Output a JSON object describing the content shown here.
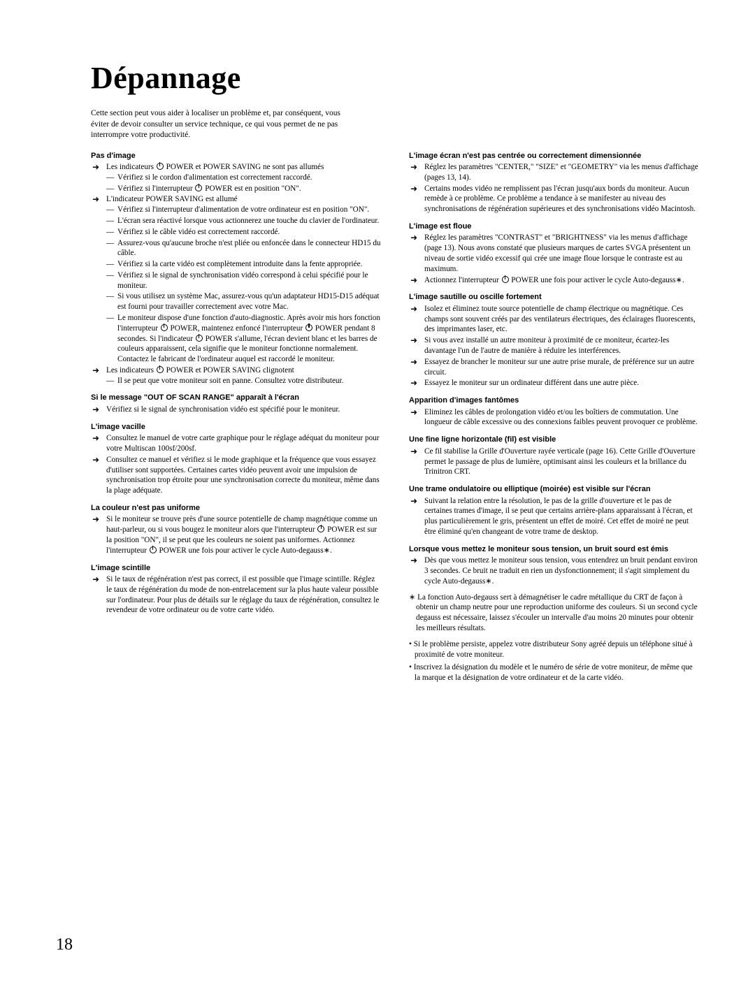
{
  "title": "Dépannage",
  "intro": "Cette section peut vous aider à localiser un problème et, par conséquent, vous éviter de devoir consulter un service technique, ce qui vous permet de ne pas interrompre votre productivité.",
  "left": {
    "s1": {
      "head": "Pas d'image",
      "a1": "Les indicateurs ⏻ POWER et POWER SAVING ne sont pas allumés",
      "a1d1": "Vérifiez si le cordon d'alimentation est correctement raccordé.",
      "a1d2": "Vérifiez si l'interrupteur ⏻ POWER est en position \"ON\".",
      "a2": "L'indicateur POWER SAVING est allumé",
      "a2d1": "Vérifiez si l'interrupteur d'alimentation de votre ordinateur est en position \"ON\".",
      "a2d2": "L'écran sera réactivé lorsque vous actionnerez une touche du clavier de l'ordinateur.",
      "a2d3": "Vérifiez si le câble vidéo est correctement raccordé.",
      "a2d4": "Assurez-vous qu'aucune broche n'est pliée ou enfoncée dans le connecteur HD15 du câble.",
      "a2d5": "Vérifiez si la carte vidéo est complètement introduite dans la fente appropriée.",
      "a2d6": "Vérifiez si le signal de synchronisation vidéo correspond à celui spécifié pour le moniteur.",
      "a2d7": "Si vous utilisez un système Mac, assurez-vous qu'un adaptateur HD15-D15 adéquat est fourni pour travailler correctement avec votre Mac.",
      "a2d8": "Le moniteur dispose d'une fonction d'auto-diagnostic. Après avoir mis hors fonction l'interrupteur ⏻ POWER, maintenez enfoncé l'interrupteur ⏻ POWER pendant 8 secondes. Si l'indicateur ⏻ POWER s'allume, l'écran devient blanc et les barres de couleurs apparaissent, cela signifie que le moniteur fonctionne normalement. Contactez le fabricant de l'ordinateur auquel est raccordé le moniteur.",
      "a3": "Les indicateurs ⏻ POWER et POWER SAVING clignotent",
      "a3d1": "Il se peut que votre moniteur soit en panne. Consultez votre distributeur."
    },
    "s2": {
      "head": "Si le message \"OUT OF SCAN RANGE\" apparaît à l'écran",
      "a1": "Vérifiez si le signal de synchronisation vidéo est spécifié pour le moniteur."
    },
    "s3": {
      "head": "L'image vacille",
      "a1": "Consultez le manuel de votre carte graphique pour le réglage adéquat du moniteur pour votre Multiscan 100sf/200sf.",
      "a2": "Consultez ce manuel et vérifiez si le mode graphique et la fréquence que vous essayez d'utiliser sont supportées. Certaines cartes vidéo peuvent avoir une impulsion de synchronisation trop étroite pour une synchronisation correcte du moniteur, même dans la plage adéquate."
    },
    "s4": {
      "head": "La couleur n'est pas uniforme",
      "a1": "Si le moniteur se trouve près d'une source potentielle de champ magnétique comme un haut-parleur, ou si vous bougez le moniteur alors que l'interrupteur ⏻ POWER est sur la position \"ON\", il se peut que les couleurs ne soient pas uniformes. Actionnez l'interrupteur ⏻ POWER une fois pour activer le cycle Auto-degauss∗."
    },
    "s5": {
      "head": "L'image scintille",
      "a1": "Si le taux de régénération n'est pas correct, il est possible que l'image scintille. Réglez le taux de régénération du mode de non-entrelacement sur la plus haute valeur possible sur l'ordinateur. Pour plus de détails sur le réglage du taux de régénération, consultez le revendeur de votre ordinateur ou de votre carte vidéo."
    }
  },
  "right": {
    "s1": {
      "head": "L'image écran n'est pas centrée ou correctement dimensionnée",
      "a1": "Réglez les paramètres \"CENTER,\" \"SIZE\" et \"GEOMETRY\" via les menus d'affichage (pages 13, 14).",
      "a2": "Certains modes vidéo ne remplissent pas l'écran jusqu'aux bords du moniteur. Aucun remède à ce problème. Ce problème a tendance à se manifester au niveau des synchronisations de régénération supérieures et des synchronisations vidéo Macintosh."
    },
    "s2": {
      "head": "L'image est floue",
      "a1": "Réglez les paramètres \"CONTRAST\" et \"BRIGHTNESS\" via les menus d'affichage (page 13). Nous avons constaté que plusieurs marques de cartes SVGA présentent un niveau de sortie vidéo excessif qui crée une image floue lorsque le contraste est au maximum.",
      "a2": "Actionnez l'interrupteur ⏻ POWER une fois pour activer le cycle Auto-degauss∗."
    },
    "s3": {
      "head": "L'image sautille ou oscille fortement",
      "a1": "Isolez et éliminez toute source potentielle de champ électrique ou magnétique. Ces champs sont souvent créés par des ventilateurs électriques, des éclairages fluorescents, des imprimantes laser, etc.",
      "a2": "Si vous avez installé un autre moniteur à proximité de ce moniteur, écartez-les davantage l'un de l'autre de manière à réduire les interférences.",
      "a3": "Essayez de brancher le moniteur sur une autre prise murale, de préférence sur un autre circuit.",
      "a4": "Essayez le moniteur sur un ordinateur différent dans une autre pièce."
    },
    "s4": {
      "head": "Apparition d'images fantômes",
      "a1": "Eliminez les câbles de prolongation vidéo et/ou les boîtiers de commutation. Une longueur de câble excessive ou des connexions faibles peuvent provoquer ce problème."
    },
    "s5": {
      "head": "Une fine ligne horizontale (fil) est visible",
      "a1": "Ce fil stabilise la Grille d'Ouverture rayée verticale (page 16). Cette Grille d'Ouverture permet le passage de plus de lumière, optimisant ainsi les couleurs et la brillance du Trinitron CRT."
    },
    "s6": {
      "head": "Une trame ondulatoire ou elliptique (moirée) est visible sur l'écran",
      "a1": "Suivant la relation entre la résolution, le pas de la grille d'ouverture et le pas de certaines trames d'image, il se peut que certains arrière-plans apparaissant à l'écran, et plus particulièrement le gris, présentent un effet de moiré. Cet effet de moiré ne peut être éliminé qu'en changeant de votre trame de desktop."
    },
    "s7": {
      "head": "Lorsque vous mettez le moniteur sous tension, un bruit sourd est émis",
      "a1": "Dès que vous mettez le moniteur sous tension, vous entendrez un bruit pendant environ 3 secondes. Ce bruit ne traduit en rien un dysfonctionnement; il s'agit simplement du cycle Auto-degauss∗."
    },
    "note": "∗ La fonction Auto-degauss sert à démagnétiser le cadre métallique du CRT de façon à obtenir un champ neutre pour une reproduction uniforme des couleurs. Si un second cycle degauss est nécessaire, laissez s'écouler un intervalle d'au moins 20 minutes pour obtenir les meilleurs résultats.",
    "b1": "Si le problème persiste, appelez votre distributeur Sony agréé depuis un téléphone situé à proximité de votre moniteur.",
    "b2": "Inscrivez la désignation du modèle et le numéro de série de votre moniteur, de même que la marque et la désignation de votre ordinateur et de la carte vidéo."
  },
  "pageNum": "18"
}
